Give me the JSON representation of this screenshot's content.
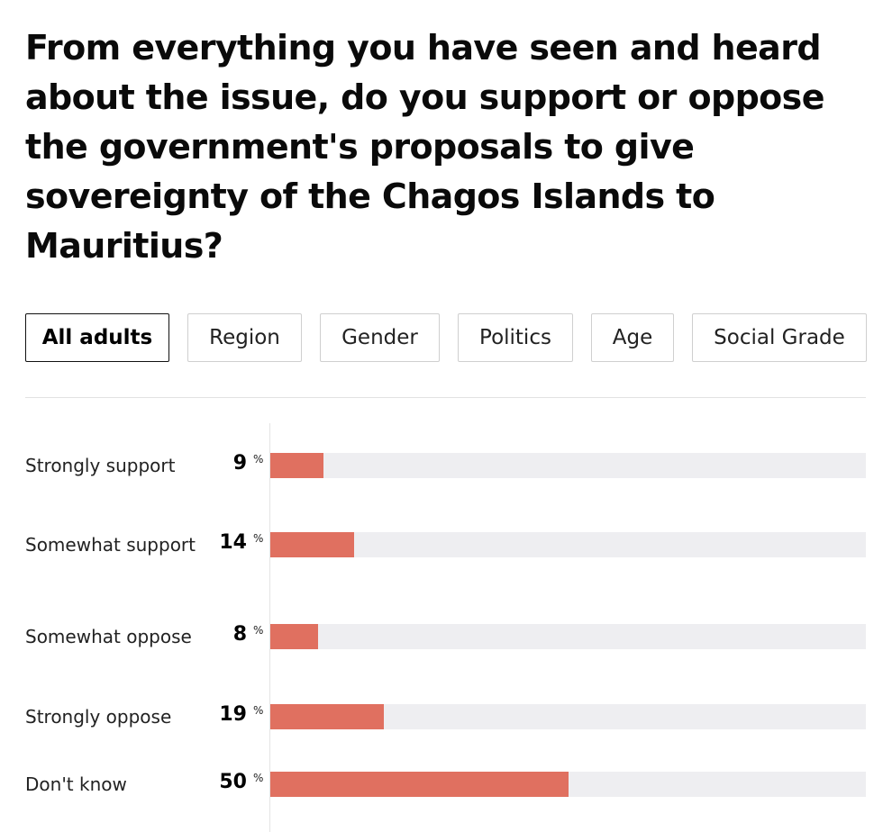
{
  "title": "From everything you have seen and heard about the issue, do you support or oppose the government's proposals to give sovereignty of the Chagos Islands to Mauritius?",
  "tabs": [
    "All adults",
    "Region",
    "Gender",
    "Politics",
    "Age",
    "Social Grade"
  ],
  "active_tab": "All adults",
  "colors": {
    "bar": "#e07060",
    "track": "#eeeef1"
  },
  "chart_data": {
    "type": "bar",
    "orientation": "horizontal",
    "categories": [
      "Strongly support",
      "Somewhat support",
      "Somewhat oppose",
      "Strongly oppose",
      "Don't know"
    ],
    "values": [
      9,
      14,
      8,
      19,
      50
    ],
    "value_suffix": "%",
    "xlim": [
      0,
      100
    ],
    "grid": false,
    "legend": "none"
  }
}
